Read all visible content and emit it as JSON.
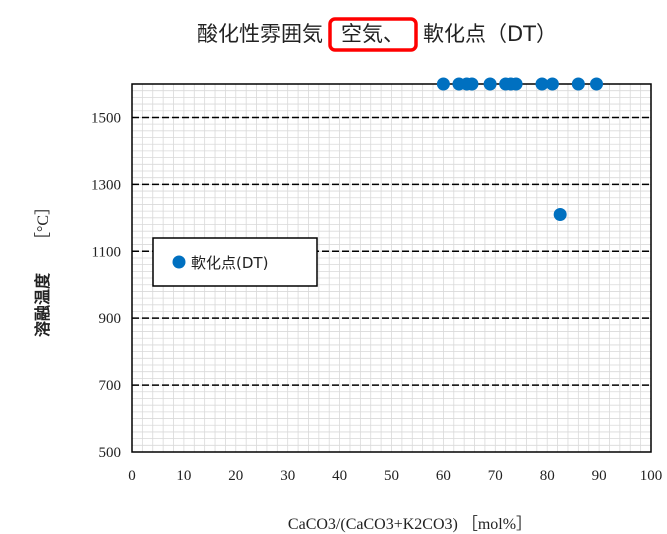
{
  "title": {
    "part1": "酸化性雰囲気",
    "highlight": "空気、",
    "part2": "軟化点（DT）"
  },
  "colors": {
    "marker": "#0070C0",
    "highlight_box": "#FF0000",
    "major_grid": "#000000",
    "minor_grid": "#D9D9D9"
  },
  "chart_data": {
    "type": "scatter",
    "xlabel": "CaCO3/(CaCO3+K2CO3) ［mol%］",
    "ylabel_main": "溶融温度",
    "ylabel_unit": "［°C］",
    "xlim": [
      0,
      100
    ],
    "ylim": [
      500,
      1600
    ],
    "x_ticks": [
      0,
      10,
      20,
      30,
      40,
      50,
      60,
      70,
      80,
      90,
      100
    ],
    "y_ticks": [
      500,
      700,
      900,
      1100,
      1300,
      1500
    ],
    "grid": true,
    "legend_position": "left-middle",
    "series": [
      {
        "name": "軟化点(DT)",
        "x": [
          60,
          63,
          64.5,
          65.5,
          69,
          72,
          73,
          74,
          79,
          81,
          82.5,
          86,
          89.5
        ],
        "y": [
          1600,
          1600,
          1600,
          1600,
          1600,
          1600,
          1600,
          1600,
          1600,
          1600,
          1210,
          1600,
          1600
        ]
      }
    ]
  }
}
